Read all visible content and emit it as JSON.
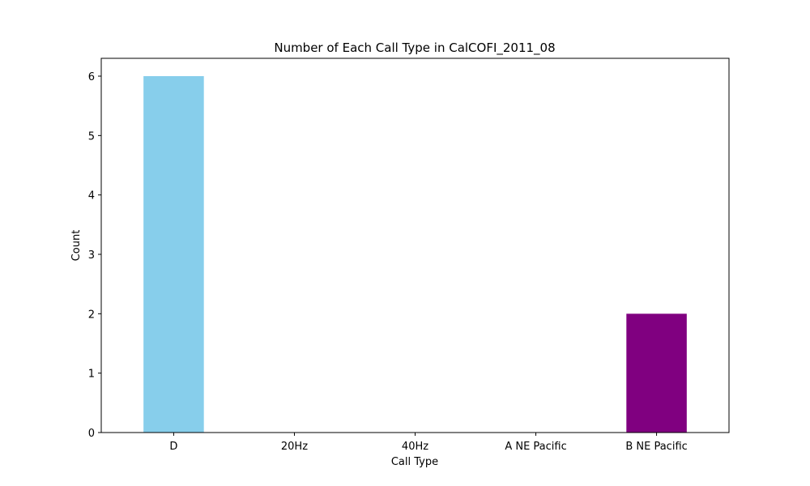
{
  "chart_data": {
    "type": "bar",
    "title": "Number of Each Call Type in CalCOFI_2011_08",
    "xlabel": "Call Type",
    "ylabel": "Count",
    "categories": [
      "D",
      "20Hz",
      "40Hz",
      "A NE Pacific",
      "B NE Pacific"
    ],
    "values": [
      6,
      0,
      0,
      0,
      2
    ],
    "colors": [
      "#87ceeb",
      "#87ceeb",
      "#87ceeb",
      "#87ceeb",
      "#800080"
    ],
    "ylim": [
      0,
      6.3
    ],
    "yticks": [
      0,
      1,
      2,
      3,
      4,
      5,
      6
    ],
    "grid": false,
    "legend": "none"
  }
}
